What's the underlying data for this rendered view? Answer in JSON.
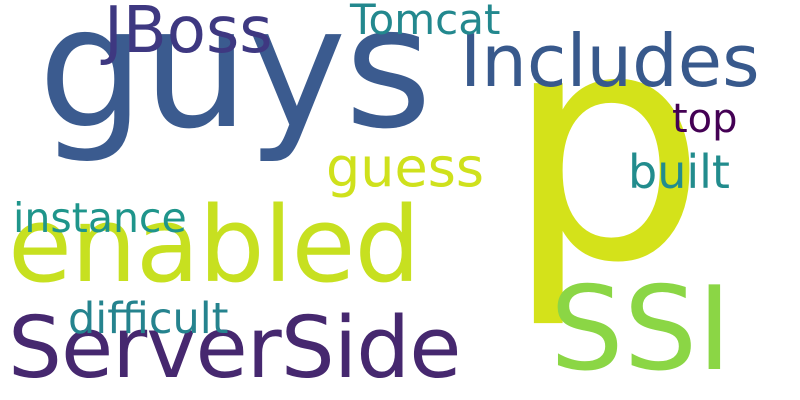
{
  "words": [
    {
      "id": "guys",
      "text": "guys",
      "color": "#3b5b8f"
    },
    {
      "id": "p",
      "text": "p",
      "color": "#d4e21a"
    },
    {
      "id": "enabled",
      "text": "enabled",
      "color": "#c7e020"
    },
    {
      "id": "serverside",
      "text": "ServerSide",
      "color": "#46286f"
    },
    {
      "id": "ssi",
      "text": "SSI",
      "color": "#8bd645"
    },
    {
      "id": "includes",
      "text": "Includes",
      "color": "#38598c"
    },
    {
      "id": "jboss",
      "text": "JBoss",
      "color": "#3e3881"
    },
    {
      "id": "tomcat",
      "text": "Tomcat",
      "color": "#23888e"
    },
    {
      "id": "guess",
      "text": "guess",
      "color": "#cfe11c"
    },
    {
      "id": "top",
      "text": "top",
      "color": "#440154"
    },
    {
      "id": "built",
      "text": "built",
      "color": "#228c8d"
    },
    {
      "id": "instance",
      "text": "instance",
      "color": "#1f958b"
    },
    {
      "id": "difficult",
      "text": "difficult",
      "color": "#25838e"
    }
  ]
}
